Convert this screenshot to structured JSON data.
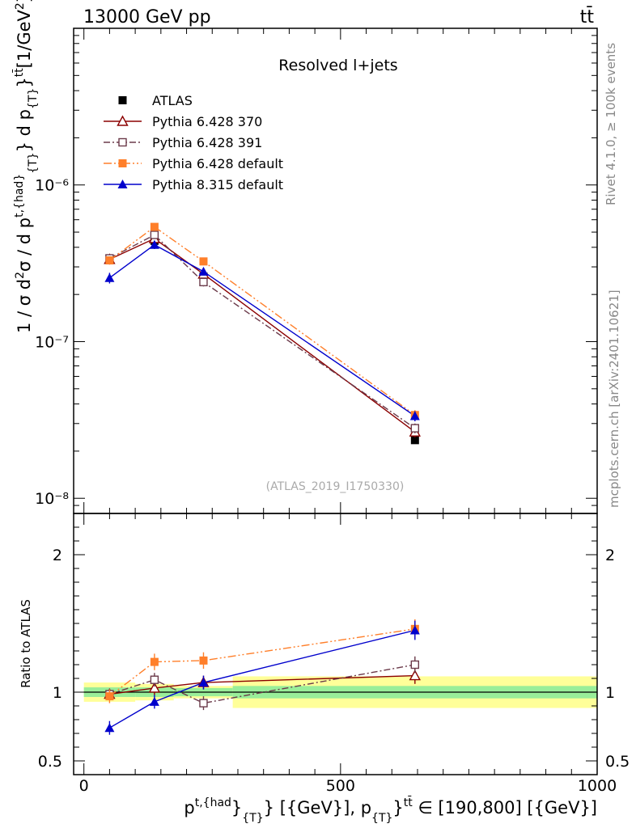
{
  "header": {
    "left": "13000 GeV pp",
    "right": "tt̄"
  },
  "side_labels": {
    "rivet": "Rivet 4.1.0, ≥ 100k events",
    "mcplots": "mcplots.cern.ch [arXiv:2401.10621]"
  },
  "chart_data": [
    {
      "type": "line",
      "panel": "main",
      "title": "Resolved l+jets",
      "watermark": "(ATLAS_2019_I1750330)",
      "ylabel": "1 / σ d²σ / d p_T^{t,{had}} d p_T^{tt̄} [1/GeV²]",
      "yscale": "log",
      "ylim": [
        8e-09,
        1e-05
      ],
      "xlim": [
        -20,
        1000
      ],
      "ytick_labels": [
        "10⁻⁸",
        "10⁻⁷",
        "10⁻⁶"
      ],
      "ytick_values": [
        1e-08,
        1e-07,
        1e-06
      ],
      "legend_position": "top-left",
      "x": [
        50,
        137.5,
        233,
        645
      ],
      "series": [
        {
          "name": "ATLAS",
          "color": "#000000",
          "marker": "square-filled",
          "line": "none",
          "values": [
            3.4e-07,
            4.4e-07,
            2.6e-07,
            2.35e-08
          ],
          "errors": [
            1.5e-08,
            2e-08,
            1e-08,
            1e-09
          ]
        },
        {
          "name": "Pythia 6.428 370",
          "color": "#8b0000",
          "marker": "triangle-open",
          "line": "solid",
          "values": [
            3.35e-07,
            4.55e-07,
            2.7e-07,
            2.65e-08
          ],
          "errors": [
            2e-08,
            2.5e-08,
            1.5e-08,
            2e-09
          ]
        },
        {
          "name": "Pythia 6.428 391",
          "color": "#6b3a4a",
          "marker": "square-open",
          "line": "dashdot",
          "values": [
            3.4e-07,
            4.8e-07,
            2.4e-07,
            2.8e-08
          ],
          "errors": [
            2e-08,
            2.5e-08,
            1.5e-08,
            2e-09
          ]
        },
        {
          "name": "Pythia 6.428 default",
          "color": "#ff7f2a",
          "marker": "square-filled",
          "line": "dashdotdot",
          "values": [
            3.3e-07,
            5.4e-07,
            3.25e-07,
            3.4e-08
          ],
          "errors": [
            2e-08,
            3e-08,
            1.5e-08,
            2.5e-09
          ]
        },
        {
          "name": "Pythia 8.315 default",
          "color": "#0000cc",
          "marker": "triangle-filled",
          "line": "solid",
          "values": [
            2.55e-07,
            4.15e-07,
            2.8e-07,
            3.35e-08
          ],
          "errors": [
            2e-08,
            2.5e-08,
            1.5e-08,
            2.5e-09
          ]
        }
      ]
    },
    {
      "type": "line",
      "panel": "ratio",
      "ylabel": "Ratio to ATLAS",
      "ylim": [
        0.4,
        2.3
      ],
      "xlim": [
        -20,
        1000
      ],
      "xlabel": "p_T^{t,{had}} [{GeV}], p_T^{tt̄} ∈ [190,800] [{GeV}]",
      "xtick_labels": [
        "0",
        "500",
        "1000"
      ],
      "xtick_values": [
        0,
        500,
        1000
      ],
      "ytick_labels": [
        "0.5",
        "1",
        "2"
      ],
      "ytick_values": [
        0.5,
        1,
        2
      ],
      "bands": {
        "bin_edges": [
          0,
          100,
          175,
          290,
          1000
        ],
        "stat_half_width": [
          0.035,
          0.035,
          0.03,
          0.045
        ],
        "total_half_width": [
          0.07,
          0.06,
          0.045,
          0.115
        ],
        "stat_color": "#99ee99",
        "total_color": "#ffff99"
      },
      "x": [
        50,
        137.5,
        233,
        645
      ],
      "series": [
        {
          "name": "Pythia 6.428 370",
          "color": "#8b0000",
          "marker": "triangle-open",
          "line": "solid",
          "values": [
            0.985,
            1.03,
            1.07,
            1.12
          ],
          "errors": [
            0.04,
            0.05,
            0.05,
            0.06
          ]
        },
        {
          "name": "Pythia 6.428 391",
          "color": "#6b3a4a",
          "marker": "square-open",
          "line": "dashdot",
          "values": [
            0.985,
            1.09,
            0.92,
            1.2
          ],
          "errors": [
            0.04,
            0.05,
            0.05,
            0.06
          ]
        },
        {
          "name": "Pythia 6.428 default",
          "color": "#ff7f2a",
          "marker": "square-filled",
          "line": "dashdotdot",
          "values": [
            0.97,
            1.22,
            1.23,
            1.46
          ],
          "errors": [
            0.05,
            0.06,
            0.06,
            0.07
          ]
        },
        {
          "name": "Pythia 8.315 default",
          "color": "#0000cc",
          "marker": "triangle-filled",
          "line": "solid",
          "values": [
            0.74,
            0.93,
            1.07,
            1.45
          ],
          "errors": [
            0.05,
            0.05,
            0.05,
            0.07
          ]
        }
      ]
    }
  ]
}
